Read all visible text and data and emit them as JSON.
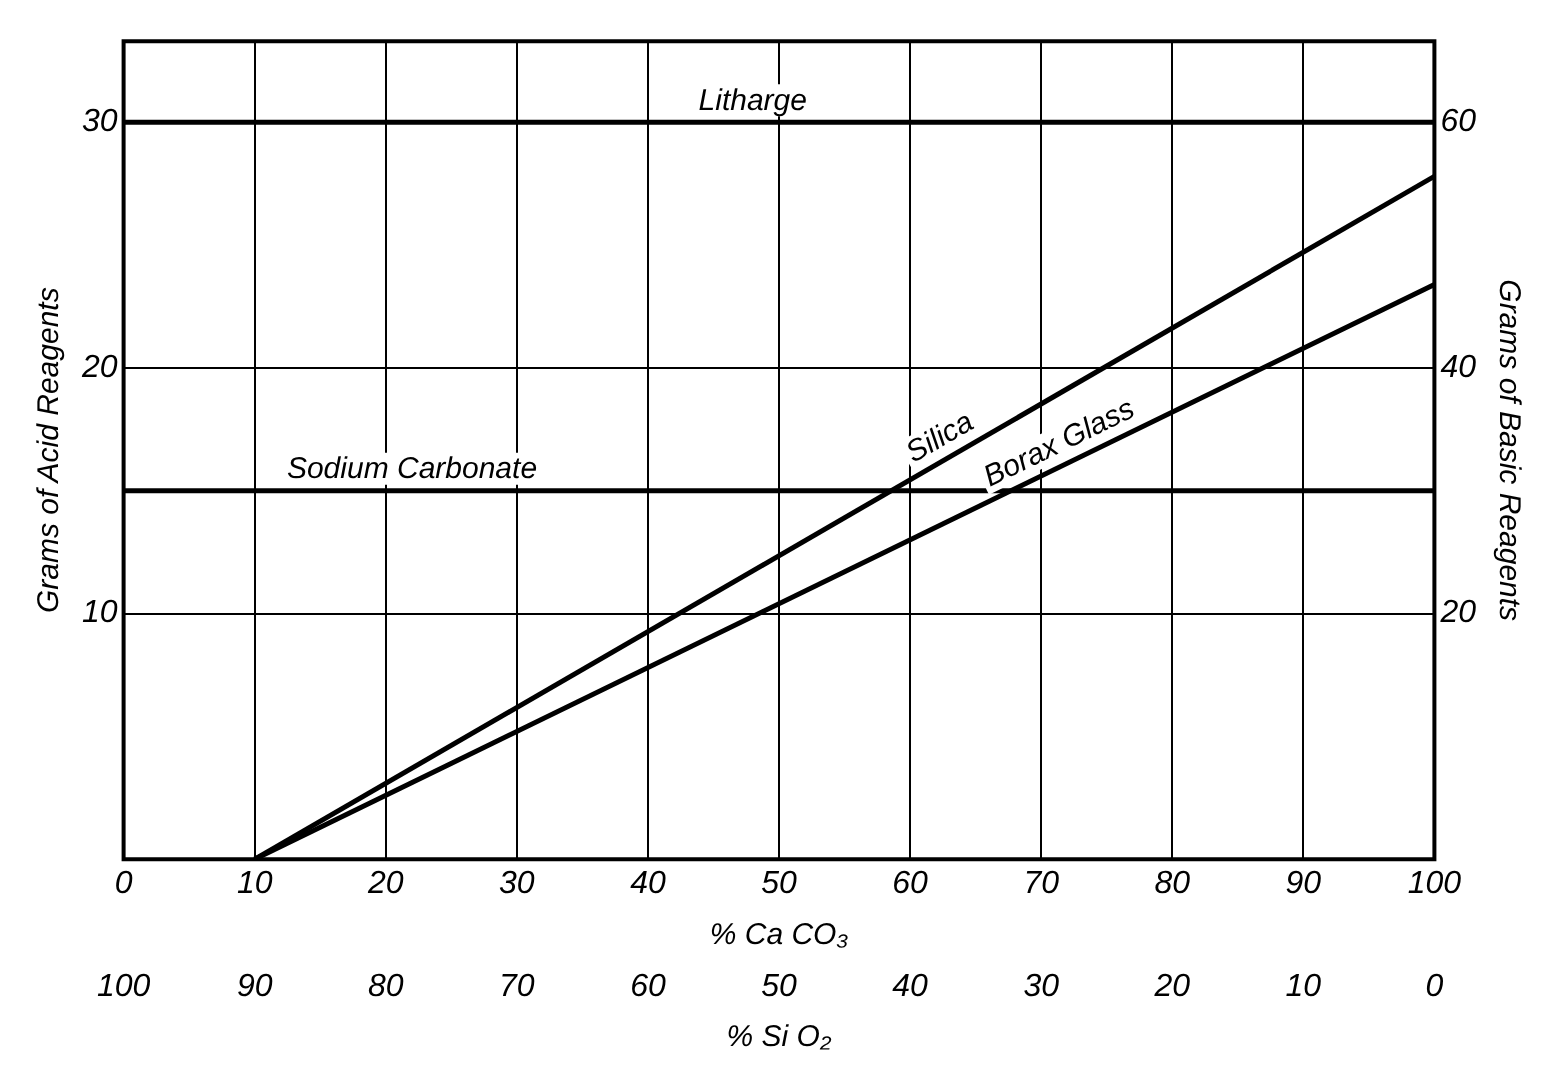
{
  "chart_data": {
    "type": "line",
    "xlabel": "% Ca CO₃",
    "x2label": "% Si O₂",
    "ylabel": "Grams of Acid Reagents",
    "y2label": "Grams of Basic Reagents",
    "xlim": [
      0,
      100
    ],
    "xticks": [
      0,
      10,
      20,
      30,
      40,
      50,
      60,
      70,
      80,
      90,
      100
    ],
    "x2lim": [
      100,
      0
    ],
    "x2ticks": [
      100,
      90,
      80,
      70,
      60,
      50,
      40,
      30,
      20,
      10,
      0
    ],
    "ylim": [
      0,
      33.3
    ],
    "yticks": [
      10,
      20,
      30
    ],
    "y2lim": [
      0,
      66.6
    ],
    "y2ticks": [
      20,
      40,
      60
    ],
    "series": [
      {
        "name": "Litharge",
        "color": "#000000",
        "axis": "y2",
        "x": [
          0,
          100
        ],
        "values": [
          60,
          60
        ]
      },
      {
        "name": "Sodium Carbonate",
        "color": "#000000",
        "axis": "y2",
        "x": [
          0,
          100
        ],
        "values": [
          30,
          30
        ]
      },
      {
        "name": "Silica",
        "color": "#000000",
        "x": [
          10,
          100
        ],
        "values": [
          0,
          27.8
        ]
      },
      {
        "name": "Borax Glass",
        "color": "#000000",
        "x": [
          10,
          100
        ],
        "values": [
          0,
          23.4
        ]
      }
    ],
    "grid": true,
    "legend": false,
    "marker": "none",
    "line_style": "solid"
  }
}
